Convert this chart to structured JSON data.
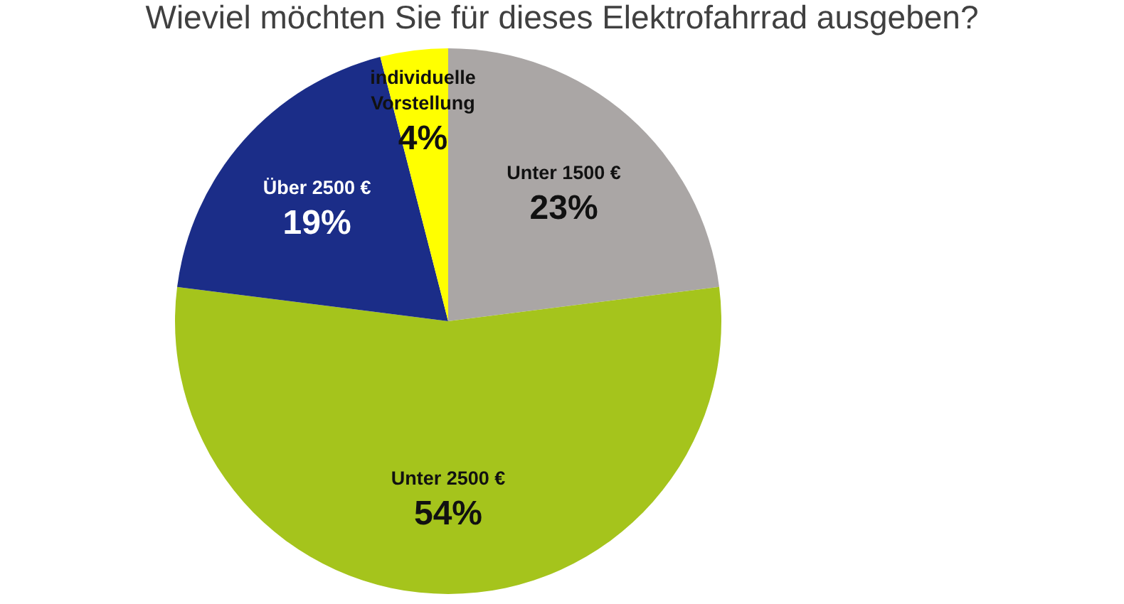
{
  "chart_data": {
    "type": "pie",
    "title": "Wieviel möchten Sie für dieses Elektrofahrrad ausgeben?",
    "categories": [
      "Unter 1500 €",
      "Unter 2500 €",
      "Über 2500 €",
      "individuelle Vorstellung"
    ],
    "values": [
      23,
      54,
      19,
      4
    ],
    "colors": [
      "#aaa6a5",
      "#a5c41c",
      "#1b2d88",
      "#ffff00"
    ],
    "value_labels": [
      "23%",
      "54%",
      "19%",
      "4%"
    ]
  }
}
